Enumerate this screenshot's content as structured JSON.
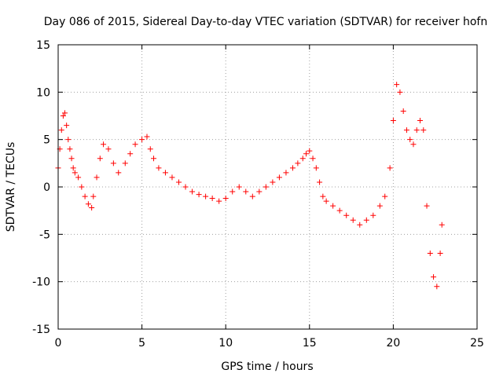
{
  "chart_data": {
    "type": "scatter",
    "title": "Day 086 of 2015, Sidereal Day-to-day VTEC variation (SDTVAR) for receiver hofn",
    "xlabel": "GPS time / hours",
    "ylabel": "SDTVAR / TECUs",
    "xlim": [
      0,
      25
    ],
    "ylim": [
      -15,
      15
    ],
    "xticks": [
      "0",
      "5",
      "10",
      "15",
      "20",
      "25"
    ],
    "yticks": [
      "-15",
      "-10",
      "-5",
      "0",
      "5",
      "10",
      "15"
    ],
    "grid": true,
    "marker": "plus",
    "series": [
      {
        "name": "SDTVAR",
        "color": "#ff0000",
        "x": [
          0.0,
          0.1,
          0.2,
          0.3,
          0.4,
          0.5,
          0.6,
          0.7,
          0.8,
          0.9,
          1.0,
          1.2,
          1.4,
          1.6,
          1.8,
          2.0,
          2.1,
          2.3,
          2.5,
          2.7,
          3.0,
          3.3,
          3.6,
          4.0,
          4.3,
          4.6,
          5.0,
          5.3,
          5.5,
          5.7,
          6.0,
          6.4,
          6.8,
          7.2,
          7.6,
          8.0,
          8.4,
          8.8,
          9.2,
          9.6,
          10.0,
          10.4,
          10.8,
          11.2,
          11.6,
          12.0,
          12.4,
          12.8,
          13.2,
          13.6,
          14.0,
          14.3,
          14.6,
          14.8,
          15.0,
          15.2,
          15.4,
          15.6,
          15.8,
          16.0,
          16.4,
          16.8,
          17.2,
          17.6,
          18.0,
          18.4,
          18.8,
          19.2,
          19.5,
          19.8,
          20.0,
          20.2,
          20.4,
          20.6,
          20.8,
          21.0,
          21.2,
          21.4,
          21.6,
          21.8,
          22.0,
          22.2,
          22.4,
          22.6,
          22.8,
          22.9
        ],
        "y": [
          2.0,
          4.0,
          6.0,
          7.5,
          7.8,
          6.5,
          5.0,
          4.0,
          3.0,
          2.0,
          1.5,
          1.0,
          0.0,
          -1.0,
          -1.8,
          -2.2,
          -1.0,
          1.0,
          3.0,
          4.5,
          4.0,
          2.5,
          1.5,
          2.5,
          3.5,
          4.5,
          5.0,
          5.3,
          4.0,
          3.0,
          2.0,
          1.5,
          1.0,
          0.5,
          0.0,
          -0.5,
          -0.8,
          -1.0,
          -1.2,
          -1.5,
          -1.2,
          -0.5,
          0.0,
          -0.5,
          -1.0,
          -0.5,
          0.0,
          0.5,
          1.0,
          1.5,
          2.0,
          2.5,
          3.0,
          3.5,
          3.8,
          3.0,
          2.0,
          0.5,
          -1.0,
          -1.5,
          -2.0,
          -2.5,
          -3.0,
          -3.5,
          -4.0,
          -3.5,
          -3.0,
          -2.0,
          -1.0,
          2.0,
          7.0,
          10.8,
          10.0,
          8.0,
          6.0,
          5.0,
          4.5,
          6.0,
          7.0,
          6.0,
          -2.0,
          -7.0,
          -9.5,
          -10.5,
          -7.0,
          -4.0
        ]
      }
    ]
  }
}
